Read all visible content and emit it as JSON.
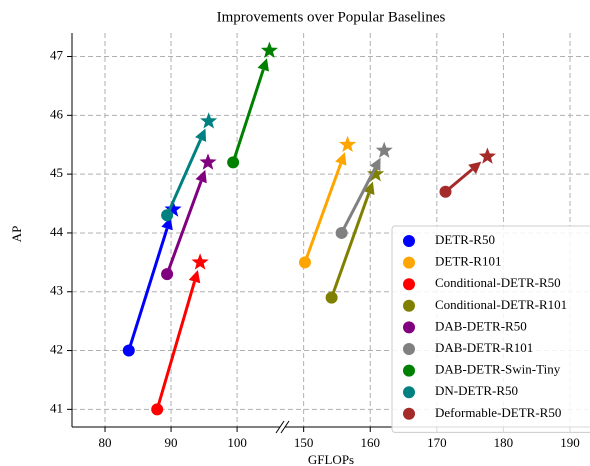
{
  "chart_data": {
    "type": "arrow-scatter",
    "title": "Improvements over Popular Baselines",
    "xlabel": "GFLOPs",
    "ylabel": "AP",
    "xlim": [
      75,
      193
    ],
    "xbreak": [
      106.5,
      147.2
    ],
    "xticks": [
      80,
      90,
      100,
      150,
      160,
      170,
      180,
      190
    ],
    "ylim": [
      40.7,
      47.4
    ],
    "yticks": [
      41,
      42,
      43,
      44,
      45,
      46,
      47
    ],
    "grid": true,
    "legend": "lower right",
    "markers": [
      "circle",
      "star"
    ],
    "series": [
      {
        "name": "DETR-R50",
        "color": "#0000ff",
        "x": [
          83.6,
          90.3
        ],
        "values": [
          42,
          44.4
        ]
      },
      {
        "name": "DETR-R101",
        "color": "#ffa500",
        "x": [
          150.2,
          156.6
        ],
        "values": [
          43.5,
          45.5
        ]
      },
      {
        "name": "Conditional-DETR-R50",
        "color": "#ff0000",
        "x": [
          87.9,
          94.4
        ],
        "values": [
          41,
          43.5
        ]
      },
      {
        "name": "Conditional-DETR-R101",
        "color": "#808000",
        "x": [
          154.2,
          160.8
        ],
        "values": [
          42.9,
          45.0
        ]
      },
      {
        "name": "DAB-DETR-R50",
        "color": "#800080",
        "x": [
          89.4,
          95.6
        ],
        "values": [
          43.3,
          45.2
        ]
      },
      {
        "name": "DAB-DETR-R101",
        "color": "#808080",
        "x": [
          155.7,
          162.1
        ],
        "values": [
          44.0,
          45.4
        ]
      },
      {
        "name": "DAB-DETR-Swin-Tiny",
        "color": "#008000",
        "x": [
          99.4,
          104.9
        ],
        "values": [
          45.2,
          47.1
        ]
      },
      {
        "name": "DN-DETR-R50",
        "color": "#008080",
        "x": [
          89.4,
          95.7
        ],
        "values": [
          44.3,
          45.9
        ]
      },
      {
        "name": "Deformable-DETR-R50",
        "color": "#a52a2a",
        "x": [
          171.3,
          177.6
        ],
        "values": [
          44.7,
          45.3
        ]
      }
    ]
  }
}
